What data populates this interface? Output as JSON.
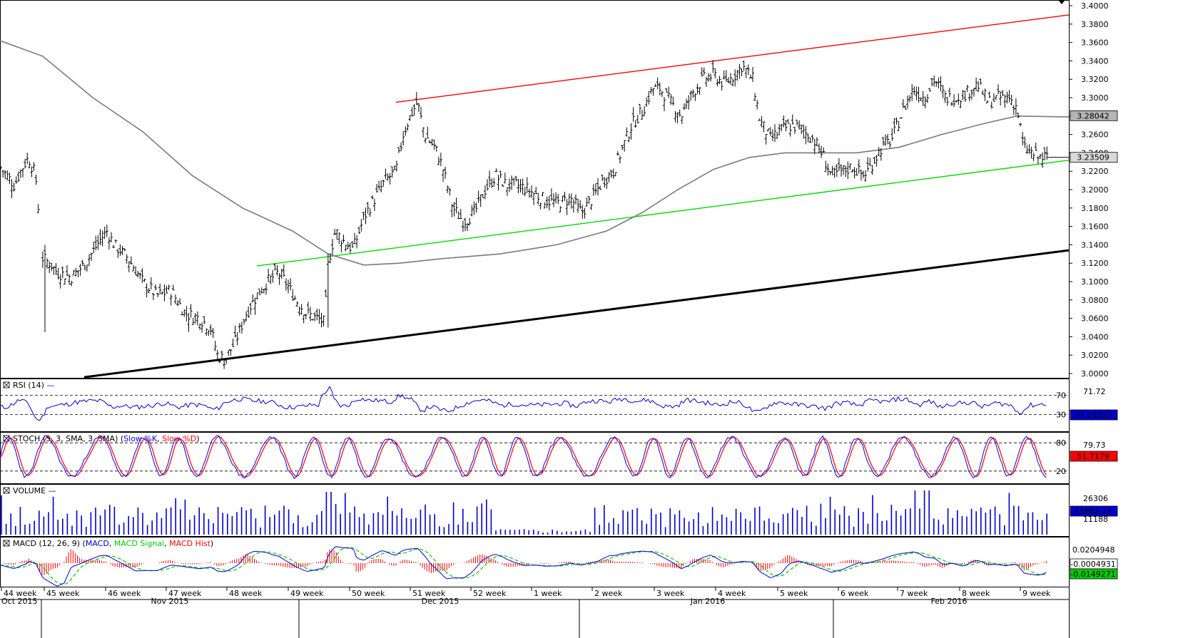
{
  "colors": {
    "bars": "#000000",
    "ma": "#7a7a7a",
    "channel_top": "#ff0000",
    "channel_bottom": "#00dd00",
    "support": "#000000",
    "rsi": "#0000cc",
    "stoch_k": "#0000ff",
    "stoch_d": "#ff0000",
    "volume": "#0000cc",
    "macd": "#0000cc",
    "macd_signal": "#00cc00",
    "macd_hist": "#ff0000"
  },
  "chart_data": [
    {
      "type": "ohlc",
      "panel": "price",
      "ylim": [
        3.0,
        3.4
      ],
      "y_ticks": [
        "3.4000",
        "3.3800",
        "3.3600",
        "3.3400",
        "3.3200",
        "3.3000",
        "3.2800",
        "3.2600",
        "3.2400",
        "3.2200",
        "3.2000",
        "3.1800",
        "3.1600",
        "3.1400",
        "3.1200",
        "3.1000",
        "3.0800",
        "3.0600",
        "3.0400",
        "3.0200",
        "3.0000"
      ],
      "last_price_label": "3.23509",
      "ma_label": "3.28042",
      "close_path": [
        [
          0,
          3.225
        ],
        [
          10,
          3.215
        ],
        [
          20,
          3.205
        ],
        [
          30,
          3.222
        ],
        [
          40,
          3.235
        ],
        [
          50,
          3.215
        ],
        [
          60,
          3.125
        ],
        [
          70,
          3.12
        ],
        [
          80,
          3.11
        ],
        [
          100,
          3.105
        ],
        [
          120,
          3.12
        ],
        [
          140,
          3.145
        ],
        [
          150,
          3.155
        ],
        [
          160,
          3.14
        ],
        [
          180,
          3.125
        ],
        [
          200,
          3.1
        ],
        [
          220,
          3.085
        ],
        [
          240,
          3.09
        ],
        [
          260,
          3.065
        ],
        [
          280,
          3.06
        ],
        [
          295,
          3.05
        ],
        [
          305,
          3.02
        ],
        [
          315,
          3.015
        ],
        [
          330,
          3.035
        ],
        [
          345,
          3.065
        ],
        [
          360,
          3.085
        ],
        [
          375,
          3.1
        ],
        [
          390,
          3.11
        ],
        [
          400,
          3.1
        ],
        [
          415,
          3.08
        ],
        [
          430,
          3.065
        ],
        [
          445,
          3.06
        ],
        [
          455,
          3.055
        ],
        [
          460,
          3.12
        ],
        [
          470,
          3.155
        ],
        [
          480,
          3.145
        ],
        [
          495,
          3.135
        ],
        [
          510,
          3.17
        ],
        [
          525,
          3.19
        ],
        [
          540,
          3.21
        ],
        [
          555,
          3.22
        ],
        [
          565,
          3.26
        ],
        [
          575,
          3.28
        ],
        [
          585,
          3.295
        ],
        [
          595,
          3.26
        ],
        [
          610,
          3.245
        ],
        [
          620,
          3.225
        ],
        [
          635,
          3.18
        ],
        [
          650,
          3.165
        ],
        [
          665,
          3.175
        ],
        [
          680,
          3.2
        ],
        [
          695,
          3.215
        ],
        [
          710,
          3.205
        ],
        [
          725,
          3.205
        ],
        [
          740,
          3.2
        ],
        [
          760,
          3.19
        ],
        [
          780,
          3.185
        ],
        [
          800,
          3.19
        ],
        [
          815,
          3.175
        ],
        [
          830,
          3.19
        ],
        [
          845,
          3.21
        ],
        [
          860,
          3.22
        ],
        [
          875,
          3.25
        ],
        [
          885,
          3.27
        ],
        [
          900,
          3.285
        ],
        [
          915,
          3.31
        ],
        [
          925,
          3.31
        ],
        [
          940,
          3.295
        ],
        [
          955,
          3.28
        ],
        [
          970,
          3.305
        ],
        [
          985,
          3.32
        ],
        [
          1000,
          3.325
        ],
        [
          1015,
          3.315
        ],
        [
          1030,
          3.325
        ],
        [
          1040,
          3.335
        ],
        [
          1055,
          3.32
        ],
        [
          1065,
          3.275
        ],
        [
          1080,
          3.255
        ],
        [
          1095,
          3.265
        ],
        [
          1110,
          3.27
        ],
        [
          1125,
          3.265
        ],
        [
          1140,
          3.255
        ],
        [
          1155,
          3.235
        ],
        [
          1165,
          3.215
        ],
        [
          1180,
          3.22
        ],
        [
          1195,
          3.225
        ],
        [
          1210,
          3.215
        ],
        [
          1220,
          3.225
        ],
        [
          1235,
          3.245
        ],
        [
          1250,
          3.255
        ],
        [
          1265,
          3.285
        ],
        [
          1280,
          3.31
        ],
        [
          1295,
          3.3
        ],
        [
          1310,
          3.32
        ],
        [
          1325,
          3.3
        ],
        [
          1340,
          3.3
        ],
        [
          1355,
          3.305
        ],
        [
          1370,
          3.315
        ],
        [
          1385,
          3.295
        ],
        [
          1400,
          3.3
        ],
        [
          1415,
          3.3
        ],
        [
          1425,
          3.29
        ],
        [
          1435,
          3.245
        ],
        [
          1445,
          3.24
        ],
        [
          1455,
          3.235
        ],
        [
          1468,
          3.235
        ]
      ],
      "trendlines": [
        {
          "name": "upper channel",
          "from": [
            "51 week",
            3.295
          ],
          "to": [
            "9 week+",
            3.39
          ]
        },
        {
          "name": "lower channel",
          "from": [
            "48 week",
            3.117
          ],
          "to": [
            "9 week+",
            3.232
          ]
        },
        {
          "name": "support",
          "from": [
            "45 week",
            2.996
          ],
          "to": [
            "9 week+",
            3.134
          ]
        }
      ]
    },
    {
      "type": "line",
      "panel": "rsi",
      "title": "RSI (14)",
      "levels": [
        "70",
        "30"
      ],
      "scale_label": "71.72",
      "last_label": "37.23213"
    },
    {
      "type": "line",
      "panel": "stoch",
      "title": "STOCH (5, 3, SMA, 3, SMA)",
      "legend": [
        "Slow %K",
        "Slow %D"
      ],
      "levels": [
        "80",
        "20"
      ],
      "scale_label": "79.73",
      "last_label": "51.7179"
    },
    {
      "type": "bar",
      "panel": "volume",
      "title": "VOLUME",
      "scale_label": "26306",
      "mid_label": "11188",
      "last_label": "15862.11"
    },
    {
      "type": "line",
      "panel": "macd",
      "title": "MACD (12, 26, 9)",
      "legend": [
        "MACD",
        "MACD Signal",
        "MACD Hist"
      ],
      "scale_label": "0.0204948",
      "last_labels": [
        "-0.0004931",
        "-0.0149271"
      ]
    }
  ],
  "x_axis": {
    "weeks": [
      "44 week",
      "45 week",
      "46 week",
      "47 week",
      "48 week",
      "49 week",
      "50 week",
      "51 week",
      "52 week",
      "1 week",
      "2 week",
      "3 week",
      "4 week",
      "5 week",
      "6 week",
      "7 week",
      "8 week",
      "9 week"
    ],
    "months": [
      "Oct 2015",
      "Nov 2015",
      "Dec 2015",
      "Jan 2016",
      "Feb 2016"
    ]
  }
}
